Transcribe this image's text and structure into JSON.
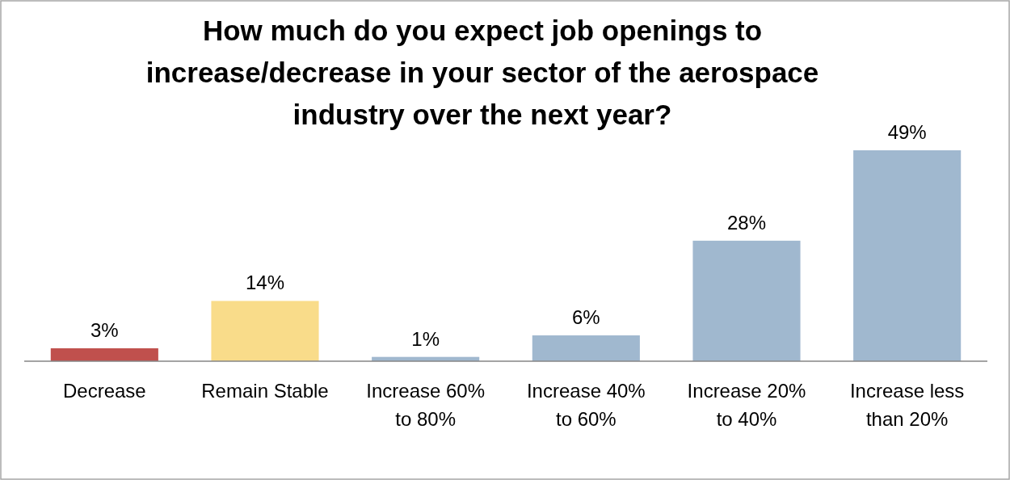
{
  "chart_data": {
    "type": "bar",
    "title": "How much do you expect job openings to increase/decrease in your sector of the aerospace industry over the next year?",
    "categories": [
      "Decrease",
      "Remain Stable",
      "Increase 60% to 80%",
      "Increase 40% to 60%",
      "Increase 20% to 40%",
      "Increase less than 20%"
    ],
    "values": [
      3,
      14,
      1,
      6,
      28,
      49
    ],
    "colors": [
      "#c0504d",
      "#f9dc8a",
      "#a0b8cf",
      "#a0b8cf",
      "#a0b8cf",
      "#a0b8cf"
    ],
    "value_labels": [
      "3%",
      "14%",
      "1%",
      "6%",
      "28%",
      "49%"
    ]
  }
}
